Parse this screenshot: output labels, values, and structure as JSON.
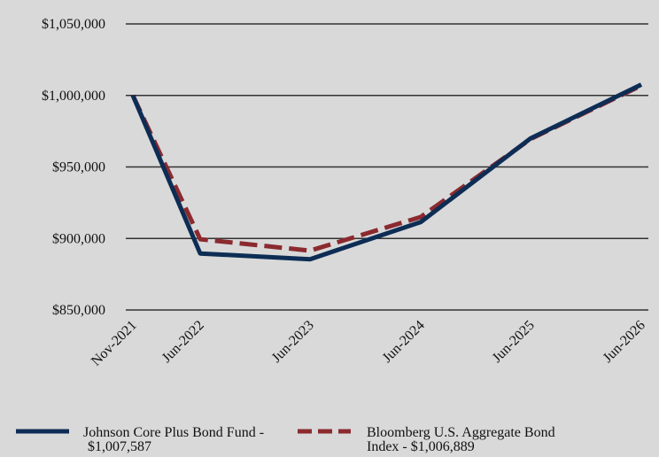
{
  "chart_data": {
    "type": "line",
    "title": "",
    "xlabel": "",
    "ylabel": "",
    "categories": [
      "Nov-2021",
      "Jun-2022",
      "Jun-2023",
      "Jun-2024",
      "Jun-2025",
      "Jun-2026"
    ],
    "x": [
      2021.833,
      2022.417,
      2023.417,
      2024.417,
      2025.417,
      2026.417
    ],
    "ylim": [
      850000,
      1050000
    ],
    "yticks": [
      850000,
      900000,
      950000,
      1000000,
      1050000
    ],
    "ytick_labels": [
      "$850,000",
      "$900,000",
      "$950,000",
      "$1,000,000",
      "$1,050,000"
    ],
    "grid": true,
    "legend_position": "bottom",
    "series": [
      {
        "name": "Johnson Core Plus Bond Fund - $1,007,587",
        "name_lines": [
          "Johnson Core Plus Bond Fund -",
          "$1,007,587"
        ],
        "x": [
          2021.833,
          2022.417,
          2023.417,
          2024.417,
          2025.417,
          2026.417
        ],
        "values": [
          1000000,
          889500,
          885500,
          911500,
          970000,
          1007587
        ],
        "color": "#0d2d55",
        "style": "solid"
      },
      {
        "name": "Bloomberg U.S. Aggregate Bond Index - $1,006,889",
        "name_lines": [
          "Bloomberg U.S. Aggregate Bond",
          "Index - $1,006,889"
        ],
        "x": [
          2021.833,
          2022.417,
          2023.417,
          2024.417,
          2025.417,
          2026.417
        ],
        "values": [
          1000000,
          899500,
          891500,
          915000,
          969500,
          1006889
        ],
        "color": "#8b2a2f",
        "style": "dashed"
      }
    ]
  }
}
